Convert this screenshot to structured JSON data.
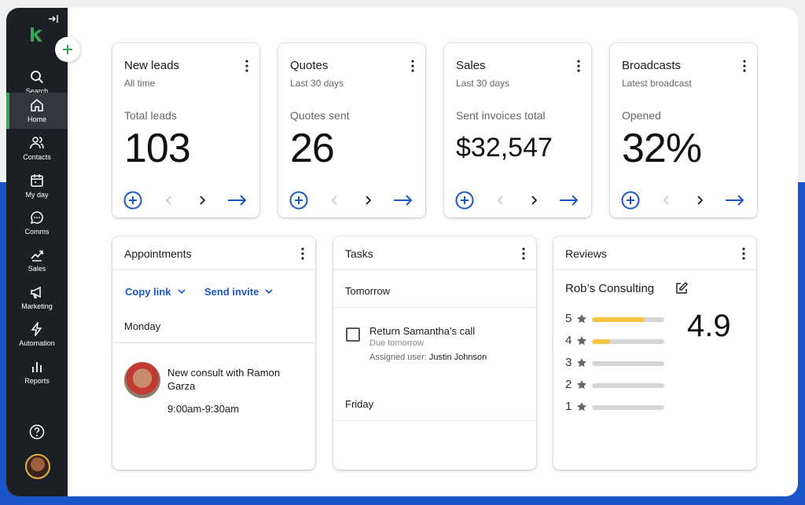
{
  "nav": {
    "items": [
      {
        "label": "Search",
        "icon": "search-icon"
      },
      {
        "label": "Home",
        "icon": "home-icon",
        "active": true
      },
      {
        "label": "Contacts",
        "icon": "contacts-icon"
      },
      {
        "label": "My day",
        "icon": "calendar-icon"
      },
      {
        "label": "Comms",
        "icon": "chat-icon"
      },
      {
        "label": "Sales",
        "icon": "sales-icon"
      },
      {
        "label": "Marketing",
        "icon": "megaphone-icon"
      },
      {
        "label": "Automation",
        "icon": "lightning-icon"
      },
      {
        "label": "Reports",
        "icon": "bar-chart-icon"
      }
    ]
  },
  "stats": [
    {
      "title": "New leads",
      "subtitle": "All time",
      "label": "Total leads",
      "value": "103"
    },
    {
      "title": "Quotes",
      "subtitle": "Last 30 days",
      "label": "Quotes sent",
      "value": "26"
    },
    {
      "title": "Sales",
      "subtitle": "Last 30 days",
      "label": "Sent invoices total",
      "value": "$32,547"
    },
    {
      "title": "Broadcasts",
      "subtitle": "Latest broadcast",
      "label": "Opened",
      "value": "32%"
    }
  ],
  "appointments": {
    "title": "Appointments",
    "copy_link": "Copy link",
    "send_invite": "Send invite",
    "day": "Monday",
    "event_title": "New consult with Ramon Garza",
    "event_time": "9:00am-9:30am"
  },
  "tasks": {
    "title": "Tasks",
    "group1": "Tomorrow",
    "task_title": "Return Samantha’s call",
    "task_due": "Due tomorrow",
    "assigned_label": "Assigned user:",
    "assigned_user": "Justin Johnson",
    "group2": "Friday"
  },
  "reviews": {
    "title": "Reviews",
    "business": "Rob’s Consulting",
    "score": "4.9",
    "breakdown": [
      {
        "stars": "5",
        "fraction": 0.73
      },
      {
        "stars": "4",
        "fraction": 0.25
      },
      {
        "stars": "3",
        "fraction": 0
      },
      {
        "stars": "2",
        "fraction": 0
      },
      {
        "stars": "1",
        "fraction": 0
      }
    ]
  },
  "colors": {
    "accent": "#1a56c9",
    "brand_green": "#3aa655",
    "sidebar": "#1c1f24",
    "star_fill": "#f5c542"
  }
}
